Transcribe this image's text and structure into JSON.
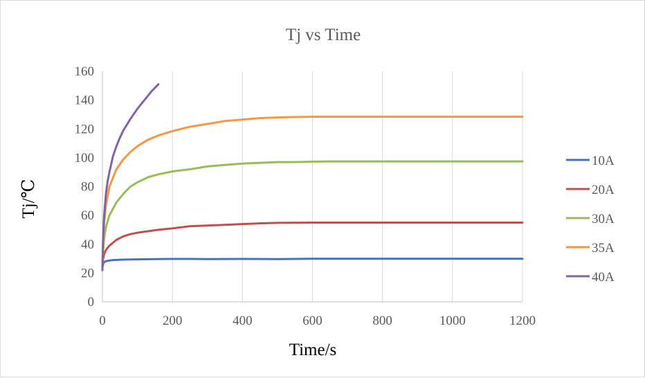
{
  "chart_data": {
    "type": "line",
    "title": "Tj vs Time",
    "xlabel": "Time/s",
    "ylabel": "Tj/℃",
    "xlim": [
      0,
      1200
    ],
    "ylim": [
      0,
      160
    ],
    "xticks": [
      0,
      200,
      400,
      600,
      800,
      1000,
      1200
    ],
    "yticks": [
      0,
      20,
      40,
      60,
      80,
      100,
      120,
      140,
      160
    ],
    "grid": "vertical",
    "legend_position": "right",
    "series": [
      {
        "name": "10A",
        "color": "#4472c4",
        "points": [
          [
            0,
            24
          ],
          [
            3,
            27
          ],
          [
            8,
            28
          ],
          [
            15,
            28.5
          ],
          [
            30,
            29
          ],
          [
            60,
            29.3
          ],
          [
            100,
            29.5
          ],
          [
            150,
            29.7
          ],
          [
            200,
            29.8
          ],
          [
            250,
            29.8
          ],
          [
            300,
            29.7
          ],
          [
            400,
            29.8
          ],
          [
            500,
            29.7
          ],
          [
            600,
            29.9
          ],
          [
            700,
            29.9
          ],
          [
            800,
            29.9
          ],
          [
            900,
            29.9
          ],
          [
            1000,
            29.9
          ],
          [
            1100,
            29.9
          ],
          [
            1200,
            29.9
          ]
        ]
      },
      {
        "name": "20A",
        "color": "#c0504d",
        "points": [
          [
            0,
            25
          ],
          [
            2,
            30
          ],
          [
            5,
            33
          ],
          [
            10,
            36
          ],
          [
            20,
            39
          ],
          [
            40,
            43
          ],
          [
            60,
            45.5
          ],
          [
            80,
            47
          ],
          [
            100,
            48
          ],
          [
            130,
            49
          ],
          [
            160,
            50
          ],
          [
            200,
            51
          ],
          [
            250,
            52.5
          ],
          [
            300,
            53
          ],
          [
            350,
            53.5
          ],
          [
            400,
            54
          ],
          [
            450,
            54.5
          ],
          [
            500,
            54.8
          ],
          [
            600,
            55
          ],
          [
            700,
            55
          ],
          [
            800,
            55
          ],
          [
            1000,
            55
          ],
          [
            1200,
            55
          ]
        ]
      },
      {
        "name": "30A",
        "color": "#9bbb59",
        "points": [
          [
            0,
            26
          ],
          [
            2,
            36
          ],
          [
            5,
            44
          ],
          [
            10,
            52
          ],
          [
            20,
            60
          ],
          [
            40,
            69
          ],
          [
            60,
            75
          ],
          [
            80,
            80
          ],
          [
            100,
            83
          ],
          [
            130,
            86.5
          ],
          [
            160,
            88.5
          ],
          [
            200,
            90.5
          ],
          [
            250,
            92
          ],
          [
            300,
            94
          ],
          [
            350,
            95
          ],
          [
            400,
            96
          ],
          [
            450,
            96.5
          ],
          [
            500,
            97
          ],
          [
            550,
            97
          ],
          [
            600,
            97.3
          ],
          [
            650,
            97.5
          ],
          [
            700,
            97.5
          ],
          [
            800,
            97.5
          ],
          [
            1000,
            97.5
          ],
          [
            1200,
            97.5
          ]
        ]
      },
      {
        "name": "35A",
        "color": "#f79646",
        "points": [
          [
            0,
            27
          ],
          [
            2,
            42
          ],
          [
            5,
            55
          ],
          [
            10,
            67
          ],
          [
            20,
            80
          ],
          [
            40,
            92
          ],
          [
            60,
            99
          ],
          [
            80,
            104
          ],
          [
            100,
            108
          ],
          [
            130,
            112.5
          ],
          [
            160,
            115.5
          ],
          [
            200,
            118.5
          ],
          [
            250,
            121.5
          ],
          [
            300,
            123.5
          ],
          [
            350,
            125.5
          ],
          [
            400,
            126.5
          ],
          [
            450,
            127.5
          ],
          [
            500,
            128
          ],
          [
            550,
            128.3
          ],
          [
            600,
            128.5
          ],
          [
            700,
            128.5
          ],
          [
            800,
            128.5
          ],
          [
            1000,
            128.5
          ],
          [
            1200,
            128.5
          ]
        ]
      },
      {
        "name": "40A",
        "color": "#8064a2",
        "points": [
          [
            0,
            22
          ],
          [
            2,
            45
          ],
          [
            5,
            60
          ],
          [
            10,
            75
          ],
          [
            15,
            84
          ],
          [
            20,
            90
          ],
          [
            30,
            101
          ],
          [
            40,
            108
          ],
          [
            50,
            114
          ],
          [
            60,
            119
          ],
          [
            80,
            127
          ],
          [
            100,
            134
          ],
          [
            120,
            140
          ],
          [
            140,
            146
          ],
          [
            160,
            151
          ]
        ]
      }
    ]
  }
}
